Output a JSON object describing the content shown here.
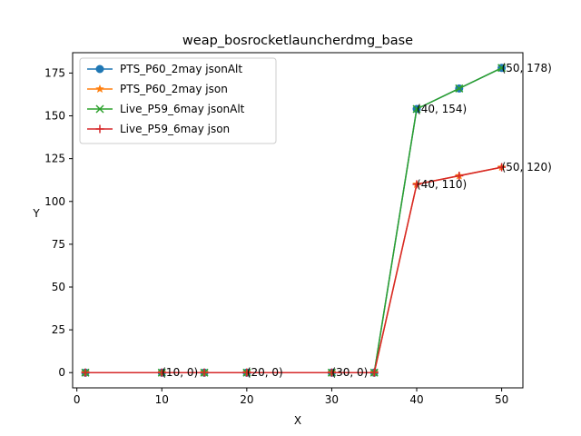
{
  "chart_data": {
    "type": "line",
    "title": "weap_bosrocketlauncherdmg_base",
    "xlabel": "X",
    "ylabel": "Y",
    "xlim": [
      -0.5,
      52.5
    ],
    "ylim": [
      -8.9,
      186.9
    ],
    "xticks": [
      0,
      10,
      20,
      30,
      40,
      50
    ],
    "yticks": [
      0,
      25,
      50,
      75,
      100,
      125,
      150,
      175
    ],
    "grid": false,
    "legend_position": "upper-left",
    "x": [
      1,
      10,
      15,
      20,
      30,
      35,
      40,
      45,
      50
    ],
    "series": [
      {
        "name": "PTS_P60_2may jsonAlt",
        "color": "#1f77b4",
        "marker": "circle",
        "values": [
          0,
          0,
          0,
          0,
          0,
          0,
          154,
          166,
          178
        ]
      },
      {
        "name": "PTS_P60_2may json",
        "color": "#ff7f0e",
        "marker": "star",
        "values": [
          0,
          0,
          0,
          0,
          0,
          0,
          110,
          115,
          120
        ]
      },
      {
        "name": "Live_P59_6may jsonAlt",
        "color": "#2ca02c",
        "marker": "x",
        "values": [
          0,
          0,
          0,
          0,
          0,
          0,
          154,
          166,
          178
        ]
      },
      {
        "name": "Live_P59_6may json",
        "color": "#d62728",
        "marker": "plus",
        "values": [
          0,
          0,
          0,
          0,
          0,
          0,
          110,
          115,
          120
        ]
      }
    ],
    "annotations": [
      {
        "text": "(10, 0)",
        "x": 10,
        "y": 0
      },
      {
        "text": "(20, 0)",
        "x": 20,
        "y": 0
      },
      {
        "text": "(30, 0)",
        "x": 30,
        "y": 0
      },
      {
        "text": "(40, 154)",
        "x": 40,
        "y": 154
      },
      {
        "text": "(50, 178)",
        "x": 50,
        "y": 178
      },
      {
        "text": "(40, 110)",
        "x": 40,
        "y": 110
      },
      {
        "text": "(50, 120)",
        "x": 50,
        "y": 120
      }
    ]
  }
}
